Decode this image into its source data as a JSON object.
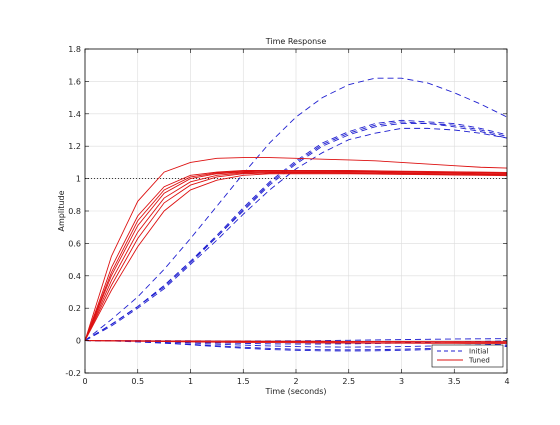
{
  "chart_data": {
    "type": "line",
    "title": "Time Response",
    "xlabel": "Time (seconds)",
    "ylabel": "Amplitude",
    "xlim": [
      0,
      4
    ],
    "ylim": [
      -0.2,
      1.8
    ],
    "xticks": [
      0,
      0.5,
      1,
      1.5,
      2,
      2.5,
      3,
      3.5,
      4
    ],
    "xtick_labels": [
      "0",
      "0.5",
      "1",
      "1.5",
      "2",
      "2.5",
      "3",
      "3.5",
      "4"
    ],
    "yticks": [
      -0.2,
      0,
      0.2,
      0.4,
      0.6,
      0.8,
      1,
      1.2,
      1.4,
      1.6,
      1.8
    ],
    "ytick_labels": [
      "-0.2",
      "0",
      "0.2",
      "0.4",
      "0.6",
      "0.8",
      "1",
      "1.2",
      "1.4",
      "1.6",
      "1.8"
    ],
    "grid": true,
    "legend_position": "bottom-right",
    "reference_line": {
      "y": 1,
      "style": "dotted",
      "color": "#000000"
    },
    "x": [
      0,
      0.25,
      0.5,
      0.75,
      1,
      1.25,
      1.5,
      1.75,
      2,
      2.25,
      2.5,
      2.75,
      3,
      3.25,
      3.5,
      3.75,
      4
    ],
    "groups": [
      {
        "name": "Initial",
        "color": "#1f1fd0",
        "dash": "dashed",
        "series": [
          [
            0,
            0.13,
            0.27,
            0.44,
            0.63,
            0.83,
            1.03,
            1.22,
            1.38,
            1.5,
            1.58,
            1.62,
            1.62,
            1.59,
            1.53,
            1.46,
            1.38
          ],
          [
            0,
            0.1,
            0.21,
            0.34,
            0.49,
            0.65,
            0.82,
            0.98,
            1.11,
            1.22,
            1.29,
            1.34,
            1.36,
            1.35,
            1.34,
            1.31,
            1.27
          ],
          [
            0,
            0.1,
            0.21,
            0.34,
            0.49,
            0.64,
            0.81,
            0.97,
            1.1,
            1.21,
            1.28,
            1.33,
            1.35,
            1.34,
            1.33,
            1.3,
            1.26
          ],
          [
            0,
            0.1,
            0.21,
            0.33,
            0.48,
            0.64,
            0.8,
            0.96,
            1.09,
            1.2,
            1.27,
            1.32,
            1.34,
            1.34,
            1.32,
            1.29,
            1.25
          ],
          [
            0,
            0.09,
            0.2,
            0.32,
            0.47,
            0.62,
            0.78,
            0.93,
            1.06,
            1.16,
            1.24,
            1.28,
            1.31,
            1.31,
            1.3,
            1.28,
            1.25
          ],
          [
            0,
            -0.001,
            -0.004,
            -0.009,
            -0.015,
            -0.022,
            -0.028,
            -0.033,
            -0.037,
            -0.039,
            -0.04,
            -0.039,
            -0.037,
            -0.034,
            -0.03,
            -0.026,
            -0.021
          ],
          [
            0,
            -0.002,
            -0.007,
            -0.014,
            -0.023,
            -0.032,
            -0.041,
            -0.048,
            -0.053,
            -0.056,
            -0.057,
            -0.056,
            -0.053,
            -0.049,
            -0.044,
            -0.038,
            -0.031
          ],
          [
            0,
            -0.002,
            -0.008,
            -0.016,
            -0.026,
            -0.037,
            -0.047,
            -0.055,
            -0.06,
            -0.063,
            -0.064,
            -0.063,
            -0.06,
            -0.056,
            -0.05,
            -0.043,
            -0.036
          ],
          [
            0,
            -0.001,
            -0.003,
            -0.006,
            -0.01,
            -0.014,
            -0.017,
            -0.02,
            -0.021,
            -0.021,
            -0.02,
            -0.018,
            -0.015,
            -0.012,
            -0.008,
            -0.005,
            -0.002
          ],
          [
            0,
            0.0,
            0.0,
            0.0,
            -0.001,
            -0.002,
            -0.002,
            -0.002,
            -0.001,
            0.0,
            0.002,
            0.004,
            0.006,
            0.008,
            0.01,
            0.011,
            0.012
          ]
        ]
      },
      {
        "name": "Tuned",
        "color": "#dd1111",
        "dash": "solid",
        "series": [
          [
            0,
            0.52,
            0.86,
            1.04,
            1.1,
            1.125,
            1.13,
            1.13,
            1.125,
            1.12,
            1.115,
            1.11,
            1.1,
            1.09,
            1.08,
            1.07,
            1.065
          ],
          [
            0,
            0.45,
            0.77,
            0.95,
            1.02,
            1.04,
            1.05,
            1.05,
            1.05,
            1.05,
            1.05,
            1.048,
            1.046,
            1.044,
            1.042,
            1.04,
            1.038
          ],
          [
            0,
            0.42,
            0.74,
            0.93,
            1.01,
            1.035,
            1.045,
            1.05,
            1.05,
            1.048,
            1.046,
            1.044,
            1.042,
            1.04,
            1.038,
            1.036,
            1.034
          ],
          [
            0,
            0.4,
            0.71,
            0.91,
            1.0,
            1.03,
            1.04,
            1.045,
            1.045,
            1.044,
            1.043,
            1.041,
            1.039,
            1.037,
            1.035,
            1.033,
            1.031
          ],
          [
            0,
            0.37,
            0.67,
            0.88,
            0.98,
            1.02,
            1.035,
            1.04,
            1.04,
            1.04,
            1.038,
            1.036,
            1.034,
            1.032,
            1.03,
            1.028,
            1.026
          ],
          [
            0,
            0.34,
            0.63,
            0.85,
            0.96,
            1.01,
            1.03,
            1.035,
            1.035,
            1.035,
            1.034,
            1.032,
            1.03,
            1.028,
            1.026,
            1.024,
            1.022
          ],
          [
            0,
            0.31,
            0.58,
            0.8,
            0.93,
            0.99,
            1.02,
            1.03,
            1.03,
            1.03,
            1.03,
            1.028,
            1.026,
            1.024,
            1.022,
            1.02,
            1.018
          ],
          [
            0,
            -0.001,
            -0.002,
            -0.003,
            -0.004,
            -0.005,
            -0.006,
            -0.007,
            -0.008,
            -0.008,
            -0.009,
            -0.009,
            -0.01,
            -0.01,
            -0.011,
            -0.011,
            -0.012
          ],
          [
            0,
            -0.002,
            -0.004,
            -0.006,
            -0.008,
            -0.01,
            -0.011,
            -0.012,
            -0.013,
            -0.014,
            -0.015,
            -0.016,
            -0.016,
            -0.017,
            -0.017,
            -0.018,
            -0.018
          ],
          [
            0,
            -0.001,
            -0.001,
            -0.002,
            -0.002,
            -0.003,
            -0.003,
            -0.004,
            -0.004,
            -0.004,
            -0.005,
            -0.005,
            -0.005,
            -0.006,
            -0.006,
            -0.006,
            -0.006
          ]
        ]
      }
    ]
  }
}
